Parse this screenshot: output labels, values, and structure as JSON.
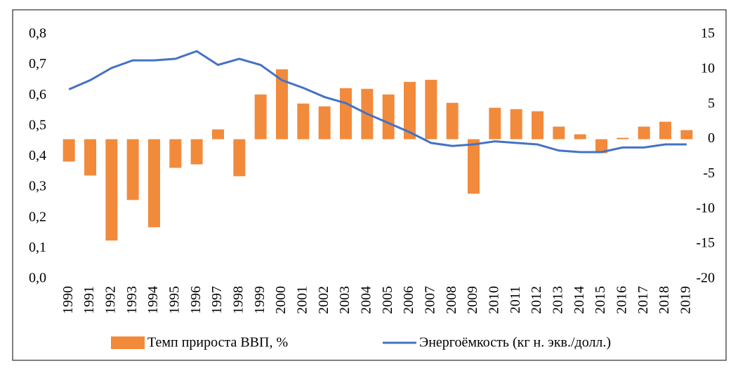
{
  "chart_data": {
    "type": "bar-line",
    "categories": [
      "1990",
      "1991",
      "1992",
      "1993",
      "1994",
      "1995",
      "1996",
      "1997",
      "1998",
      "1999",
      "2000",
      "2001",
      "2002",
      "2003",
      "2004",
      "2005",
      "2006",
      "2007",
      "2008",
      "2009",
      "2010",
      "2011",
      "2012",
      "2013",
      "2014",
      "2015",
      "2016",
      "2017",
      "2018",
      "2019"
    ],
    "series": [
      {
        "name": "Темп прироста ВВП, %",
        "color": "#f28a3c",
        "type": "bar",
        "axis": "y2",
        "values": [
          -3.2,
          -5.2,
          -14.5,
          -8.7,
          -12.6,
          -4.1,
          -3.6,
          1.4,
          -5.3,
          6.4,
          10.0,
          5.1,
          4.7,
          7.3,
          7.2,
          6.4,
          8.2,
          8.5,
          5.2,
          -7.8,
          4.5,
          4.3,
          4.0,
          1.8,
          0.7,
          -2.0,
          0.2,
          1.8,
          2.5,
          1.3
        ]
      },
      {
        "name": "Энергоёмкость (кг н. экв./долл.)",
        "color": "#4472c4",
        "type": "line",
        "values": [
          0.62,
          0.65,
          0.69,
          0.715,
          0.715,
          0.72,
          0.745,
          0.7,
          0.72,
          0.7,
          0.65,
          0.625,
          0.595,
          0.575,
          0.54,
          0.51,
          0.48,
          0.445,
          0.435,
          0.44,
          0.45,
          0.445,
          0.44,
          0.42,
          0.415,
          0.415,
          0.43,
          0.43,
          0.44,
          0.44
        ]
      }
    ],
    "ylim": [
      0,
      0.8
    ],
    "yticks": [
      {
        "value": 0,
        "label": "0,0"
      },
      {
        "value": 0.1,
        "label": "0,1"
      },
      {
        "value": 0.2,
        "label": "0,2"
      },
      {
        "value": 0.3,
        "label": "0,3"
      },
      {
        "value": 0.4,
        "label": "0,4"
      },
      {
        "value": 0.5,
        "label": "0,5"
      },
      {
        "value": 0.6,
        "label": "0,6"
      },
      {
        "value": 0.7,
        "label": "0,7"
      },
      {
        "value": 0.8,
        "label": "0,8"
      }
    ],
    "y2lim": [
      -20,
      15
    ],
    "y2ticks": [
      -20,
      -15,
      -10,
      -5,
      0,
      5,
      10,
      15
    ],
    "legend": "bottom"
  }
}
